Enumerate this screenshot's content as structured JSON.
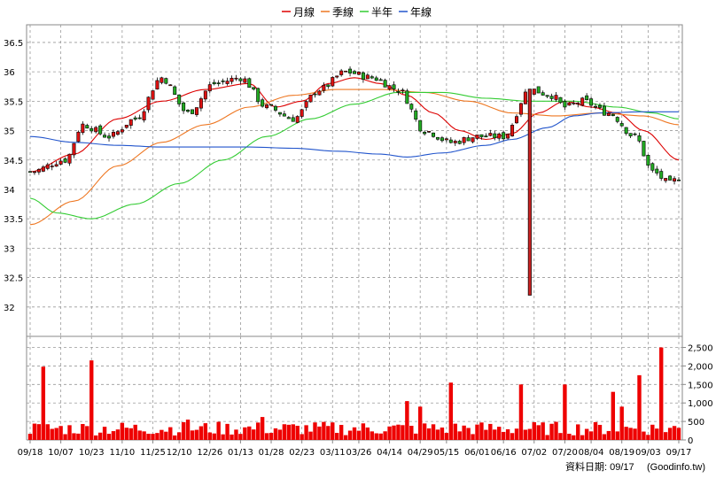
{
  "chart_data": [
    {
      "type": "candlestick",
      "legend": [
        "月線",
        "季線",
        "半年",
        "年線"
      ],
      "legend_placement": "top-center",
      "grid": true,
      "ylim": [
        31.5,
        36.8
      ],
      "yticks": [
        "36.5",
        "36",
        "35.5",
        "35",
        "34.5",
        "34",
        "33.5",
        "33",
        "32.5",
        "32"
      ],
      "xticks": [
        "09/18",
        "10/07",
        "10/23",
        "11/10",
        "11/25",
        "12/10",
        "12/26",
        "01/13",
        "01/28",
        "02/23",
        "03/11",
        "03/26",
        "04/14",
        "04/29",
        "05/15",
        "06/01",
        "06/16",
        "07/02",
        "07/20",
        "08/04",
        "08/19",
        "09/03",
        "09/17"
      ],
      "close_anchors": [
        [
          0,
          34.3
        ],
        [
          8,
          34.5
        ],
        [
          12,
          35.1
        ],
        [
          18,
          34.9
        ],
        [
          24,
          35.2
        ],
        [
          30,
          35.9
        ],
        [
          36,
          35.3
        ],
        [
          42,
          35.8
        ],
        [
          48,
          35.9
        ],
        [
          54,
          35.4
        ],
        [
          60,
          35.2
        ],
        [
          66,
          35.7
        ],
        [
          72,
          36.0
        ],
        [
          78,
          35.9
        ],
        [
          84,
          35.7
        ],
        [
          90,
          35.0
        ],
        [
          96,
          34.8
        ],
        [
          102,
          34.9
        ],
        [
          108,
          34.9
        ],
        [
          114,
          35.7
        ],
        [
          119,
          35.6
        ],
        [
          122,
          35.4
        ],
        [
          126,
          35.5
        ],
        [
          132,
          35.3
        ],
        [
          138,
          34.9
        ],
        [
          142,
          34.3
        ],
        [
          146,
          34.1
        ],
        [
          148,
          34.2
        ]
      ],
      "series": [
        {
          "name": "月線",
          "color": "#dd0000",
          "anchors": [
            [
              0,
              34.3
            ],
            [
              10,
              34.6
            ],
            [
              20,
              35.2
            ],
            [
              30,
              35.5
            ],
            [
              40,
              35.7
            ],
            [
              50,
              35.8
            ],
            [
              56,
              35.4
            ],
            [
              62,
              35.5
            ],
            [
              68,
              35.8
            ],
            [
              74,
              35.9
            ],
            [
              80,
              35.8
            ],
            [
              86,
              35.6
            ],
            [
              92,
              35.3
            ],
            [
              98,
              35.0
            ],
            [
              104,
              34.85
            ],
            [
              110,
              34.95
            ],
            [
              116,
              35.3
            ],
            [
              122,
              35.5
            ],
            [
              128,
              35.4
            ],
            [
              134,
              35.3
            ],
            [
              140,
              35.0
            ],
            [
              148,
              34.5
            ]
          ]
        },
        {
          "name": "季線",
          "color": "#ee7722",
          "anchors": [
            [
              0,
              33.4
            ],
            [
              10,
              33.8
            ],
            [
              20,
              34.4
            ],
            [
              30,
              34.8
            ],
            [
              40,
              35.1
            ],
            [
              50,
              35.4
            ],
            [
              60,
              35.6
            ],
            [
              70,
              35.7
            ],
            [
              80,
              35.7
            ],
            [
              90,
              35.65
            ],
            [
              100,
              35.5
            ],
            [
              110,
              35.3
            ],
            [
              120,
              35.25
            ],
            [
              130,
              35.3
            ],
            [
              140,
              35.25
            ],
            [
              148,
              35.1
            ]
          ]
        },
        {
          "name": "半年",
          "color": "#33cc33",
          "anchors": [
            [
              0,
              33.85
            ],
            [
              6,
              33.6
            ],
            [
              14,
              33.5
            ],
            [
              24,
              33.75
            ],
            [
              34,
              34.1
            ],
            [
              44,
              34.5
            ],
            [
              54,
              34.9
            ],
            [
              64,
              35.2
            ],
            [
              74,
              35.45
            ],
            [
              84,
              35.65
            ],
            [
              94,
              35.65
            ],
            [
              104,
              35.55
            ],
            [
              114,
              35.5
            ],
            [
              124,
              35.5
            ],
            [
              134,
              35.4
            ],
            [
              142,
              35.3
            ],
            [
              148,
              35.2
            ]
          ]
        },
        {
          "name": "年線",
          "color": "#2255cc",
          "anchors": [
            [
              0,
              34.9
            ],
            [
              10,
              34.8
            ],
            [
              20,
              34.75
            ],
            [
              30,
              34.72
            ],
            [
              40,
              34.72
            ],
            [
              50,
              34.72
            ],
            [
              60,
              34.7
            ],
            [
              70,
              34.65
            ],
            [
              80,
              34.6
            ],
            [
              86,
              34.55
            ],
            [
              94,
              34.62
            ],
            [
              104,
              34.75
            ],
            [
              110,
              34.85
            ],
            [
              118,
              35.05
            ],
            [
              124,
              35.25
            ],
            [
              130,
              35.3
            ],
            [
              140,
              35.32
            ],
            [
              148,
              35.32
            ]
          ]
        }
      ],
      "events": [
        {
          "bar": 114,
          "low": 32.2
        }
      ]
    },
    {
      "type": "bar",
      "ylim": [
        0,
        2800
      ],
      "yticks": [
        "2,500",
        "2,000",
        "1,500",
        "1,000",
        "500",
        "0"
      ],
      "spikes": [
        [
          3,
          1980
        ],
        [
          14,
          2150
        ],
        [
          36,
          550
        ],
        [
          53,
          620
        ],
        [
          86,
          1050
        ],
        [
          89,
          900
        ],
        [
          96,
          1550
        ],
        [
          112,
          1500
        ],
        [
          122,
          1500
        ],
        [
          133,
          1300
        ],
        [
          135,
          900
        ],
        [
          139,
          1750
        ],
        [
          144,
          2500
        ]
      ]
    }
  ],
  "footer": {
    "date_label": "資料日期: 09/17",
    "source": "(Goodinfo.tw)"
  }
}
